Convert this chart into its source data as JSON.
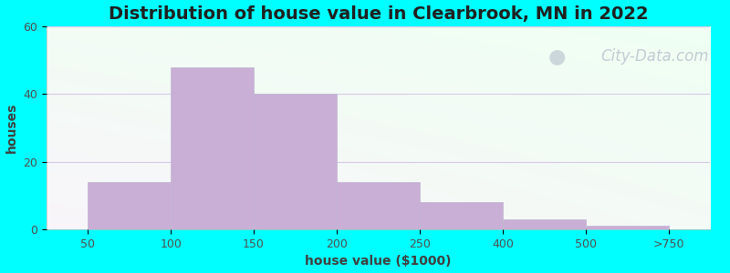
{
  "title": "Distribution of house value in Clearbrook, MN in 2022",
  "xlabel": "house value ($1000)",
  "ylabel": "houses",
  "tick_labels": [
    "50",
    "100",
    "150",
    "200",
    "250",
    "400",
    "500",
    ">750"
  ],
  "bar_heights": [
    14,
    48,
    40,
    14,
    8,
    3,
    1
  ],
  "bar_color": "#c9aed6",
  "bar_edge_color": "#c0b8d0",
  "bg_color": "#00ffff",
  "yticks": [
    0,
    20,
    40,
    60
  ],
  "ylim": [
    0,
    60
  ],
  "title_fontsize": 14,
  "axis_label_fontsize": 10,
  "tick_fontsize": 9,
  "watermark_text": "City-Data.com",
  "watermark_color": "#b0b8c8",
  "watermark_fontsize": 12,
  "grid_color": "#d8c8e8",
  "grid_linewidth": 0.8
}
